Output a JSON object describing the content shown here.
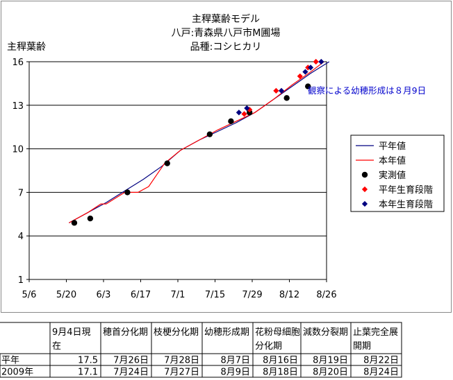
{
  "chart_data": {
    "type": "line",
    "title_lines": [
      "主稈葉齢モデル",
      "八戸:青森県八戸市M圃場",
      "品種:コシヒカリ"
    ],
    "ylabel": "主稈葉齢",
    "xlabel": "",
    "ylim": [
      1,
      16
    ],
    "yticks": [
      1,
      4,
      7,
      10,
      13,
      16
    ],
    "xlim": [
      "5/6",
      "8/26"
    ],
    "xticks": [
      "5/6",
      "5/20",
      "6/3",
      "6/17",
      "7/1",
      "7/15",
      "7/29",
      "8/12",
      "8/26"
    ],
    "grid": "horizontal",
    "legend_position": "right",
    "annotation": "観察による幼穂形成は８月9日",
    "series": [
      {
        "name": "平年値",
        "kind": "line",
        "color": "#000080",
        "points": [
          [
            "5/21",
            4.9
          ],
          [
            "5/28",
            5.6
          ],
          [
            "6/4",
            6.3
          ],
          [
            "6/11",
            7.1
          ],
          [
            "6/18",
            7.9
          ],
          [
            "6/25",
            8.8
          ],
          [
            "7/2",
            9.9
          ],
          [
            "7/9",
            10.6
          ],
          [
            "7/16",
            11.2
          ],
          [
            "7/23",
            11.8
          ],
          [
            "7/30",
            12.5
          ],
          [
            "8/6",
            13.4
          ],
          [
            "8/13",
            14.3
          ],
          [
            "8/20",
            15.2
          ],
          [
            "8/27",
            16.0
          ]
        ]
      },
      {
        "name": "本年値",
        "kind": "line",
        "color": "#ff0000",
        "points": [
          [
            "5/21",
            4.9
          ],
          [
            "5/28",
            5.6
          ],
          [
            "6/2",
            6.2
          ],
          [
            "6/4",
            6.2
          ],
          [
            "6/11",
            7.0
          ],
          [
            "6/16",
            7.0
          ],
          [
            "6/20",
            7.4
          ],
          [
            "6/23",
            8.2
          ],
          [
            "6/26",
            9.0
          ],
          [
            "7/2",
            9.9
          ],
          [
            "7/9",
            10.6
          ],
          [
            "7/16",
            11.3
          ],
          [
            "7/23",
            11.9
          ],
          [
            "7/30",
            12.5
          ],
          [
            "8/6",
            13.4
          ],
          [
            "8/13",
            14.4
          ],
          [
            "8/20",
            15.3
          ],
          [
            "8/25",
            16.0
          ]
        ]
      },
      {
        "name": "実測値",
        "kind": "scatter",
        "marker": "circle",
        "color": "#000000",
        "points": [
          [
            "5/23",
            4.9
          ],
          [
            "5/29",
            5.2
          ],
          [
            "6/12",
            7.0
          ],
          [
            "6/27",
            9.0
          ],
          [
            "7/13",
            11.0
          ],
          [
            "7/21",
            11.9
          ],
          [
            "7/28",
            12.5
          ],
          [
            "8/11",
            13.5
          ],
          [
            "8/19",
            14.3
          ]
        ]
      },
      {
        "name": "平年生育段階",
        "kind": "scatter",
        "marker": "diamond",
        "color": "#ff0000",
        "points": [
          [
            "7/26",
            12.4
          ],
          [
            "7/28",
            12.7
          ],
          [
            "8/7",
            14.0
          ],
          [
            "8/16",
            15.0
          ],
          [
            "8/19",
            15.6
          ],
          [
            "8/22",
            16.0
          ]
        ]
      },
      {
        "name": "本年生育段階",
        "kind": "scatter",
        "marker": "diamond",
        "color": "#000080",
        "points": [
          [
            "7/24",
            12.5
          ],
          [
            "7/27",
            12.8
          ],
          [
            "8/9",
            14.0
          ],
          [
            "8/18",
            15.3
          ],
          [
            "8/20",
            15.6
          ],
          [
            "8/24",
            16.0
          ]
        ]
      }
    ]
  },
  "table": {
    "header": [
      "",
      "9月4日現在",
      "穂首分化期",
      "枝梗分化期",
      "幼穂形成期",
      "花粉母細胞分化期",
      "減数分裂期",
      "止葉完全展開期"
    ],
    "rows": [
      [
        "平年",
        "17.5",
        "7月26日",
        "7月28日",
        "8月7日",
        "8月16日",
        "8月19日",
        "8月22日"
      ],
      [
        "2009年",
        "17.1",
        "7月24日",
        "7月27日",
        "8月9日",
        "8月18日",
        "8月20日",
        "8月24日"
      ]
    ]
  }
}
